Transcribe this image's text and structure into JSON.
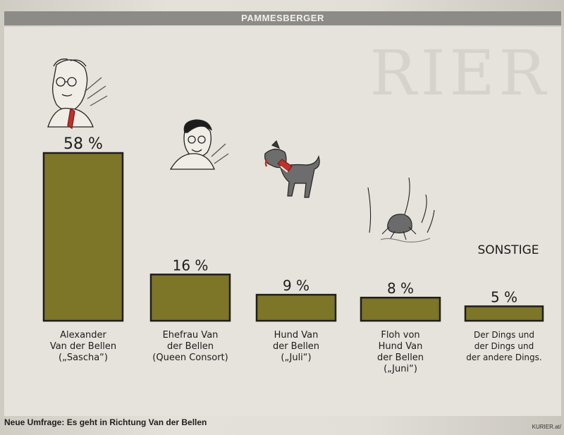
{
  "header": {
    "title": "PAMMESBERGER"
  },
  "caption": "Neue Umfrage: Es geht in Richtung Van der Bellen",
  "credit": "KURIER.at/",
  "bleed_letters": "RIER",
  "colors": {
    "bar": "#7d7527",
    "outline": "#1e1e1a"
  },
  "chart_data": {
    "type": "bar",
    "categories": [
      "Alexander Van der Bellen („Sascha“)",
      "Ehefrau Van der Bellen (Queen Consort)",
      "Hund Van der Bellen („Juli“)",
      "Floh von Hund Van der Bellen („Juni“)",
      "Der Dings und der Dings und der andere Dings."
    ],
    "values": [
      58,
      16,
      9,
      8,
      5
    ],
    "value_labels": [
      "58 %",
      "16 %",
      "9 %",
      "8 %",
      "5 %"
    ],
    "label_lines": [
      [
        "Alexander",
        "Van der Bellen",
        "(„Sascha“)"
      ],
      [
        "Ehefrau Van",
        "der Bellen",
        "(Queen Consort)"
      ],
      [
        "Hund Van",
        "der Bellen",
        "(„Juli“)"
      ],
      [
        "Floh von",
        "Hund Van",
        "der Bellen",
        "(„Juni“)"
      ],
      [
        "Der Dings und",
        "der Dings und",
        "der andere Dings."
      ]
    ],
    "annotation": "SONSTIGE",
    "ylim": [
      0,
      58
    ],
    "grid": false,
    "legend": "none"
  }
}
